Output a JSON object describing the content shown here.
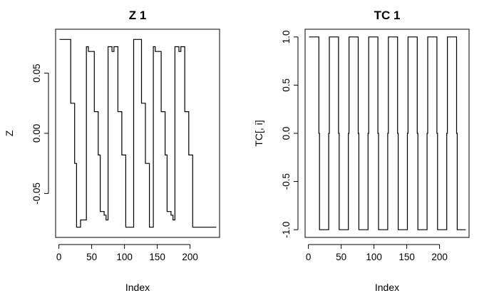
{
  "chart_data": [
    {
      "type": "line",
      "title": "Z 1",
      "xlabel": "Index",
      "ylabel": "Z",
      "xlim": [
        -5,
        245
      ],
      "ylim": [
        -0.0865,
        0.0865
      ],
      "x_ticks": [
        {
          "value": 0,
          "label": "0"
        },
        {
          "value": 50,
          "label": "50"
        },
        {
          "value": 100,
          "label": "100"
        },
        {
          "value": 150,
          "label": "150"
        },
        {
          "value": 200,
          "label": "200"
        }
      ],
      "y_ticks": [
        {
          "value": -0.05,
          "label": "-0.05"
        },
        {
          "value": 0,
          "label": "0.00"
        },
        {
          "value": 0.05,
          "label": "0.05"
        }
      ],
      "grid": false,
      "line_style": "step",
      "series": [
        {
          "x": [
            1,
            15,
            18,
            21,
            24,
            27,
            30,
            33,
            36,
            39,
            42,
            45,
            48,
            51,
            54,
            57,
            60,
            63,
            66,
            69,
            72,
            75,
            78,
            81,
            84,
            87,
            90,
            93,
            96,
            99,
            102,
            105,
            108,
            111,
            114,
            117,
            120,
            123,
            126,
            129,
            132,
            135,
            138,
            141,
            144,
            147,
            150,
            153,
            156,
            159,
            162,
            165,
            168,
            171,
            174,
            177,
            180,
            183,
            186,
            189,
            192,
            195,
            198,
            201,
            204,
            207,
            210,
            213,
            216,
            219,
            222,
            225,
            228,
            240
          ],
          "y": [
            0.078,
            0.078,
            0.025,
            0.025,
            -0.025,
            -0.078,
            -0.078,
            -0.072,
            -0.072,
            -0.072,
            0.072,
            0.068,
            0.068,
            0.068,
            0.018,
            0.018,
            -0.018,
            -0.065,
            -0.065,
            -0.068,
            -0.072,
            0.072,
            0.072,
            0.068,
            0.072,
            0.072,
            0.018,
            0.018,
            -0.018,
            -0.018,
            -0.078,
            -0.078,
            -0.078,
            -0.078,
            0.078,
            0.078,
            0.078,
            0.078,
            0.025,
            0.025,
            -0.025,
            -0.025,
            -0.078,
            -0.078,
            0.072,
            0.068,
            0.068,
            0.068,
            0.018,
            0.018,
            -0.018,
            -0.065,
            -0.065,
            -0.068,
            -0.072,
            0.072,
            0.072,
            0.068,
            0.072,
            0.072,
            0.018,
            0.018,
            -0.018,
            -0.018,
            -0.078,
            -0.078,
            -0.078,
            -0.078,
            -0.078,
            -0.078,
            -0.078,
            -0.078,
            -0.078,
            -0.078
          ]
        }
      ]
    },
    {
      "type": "line",
      "title": "TC 1",
      "xlabel": "Index",
      "ylabel": "TC[, i]",
      "xlim": [
        -5,
        245
      ],
      "ylim": [
        -1.08,
        1.08
      ],
      "x_ticks": [
        {
          "value": 0,
          "label": "0"
        },
        {
          "value": 50,
          "label": "50"
        },
        {
          "value": 100,
          "label": "100"
        },
        {
          "value": 150,
          "label": "150"
        },
        {
          "value": 200,
          "label": "200"
        }
      ],
      "y_ticks": [
        {
          "value": -1,
          "label": "-1.0"
        },
        {
          "value": -0.5,
          "label": "-0.5"
        },
        {
          "value": 0,
          "label": "0.0"
        },
        {
          "value": 0.5,
          "label": "0.5"
        },
        {
          "value": 1,
          "label": "1.0"
        }
      ],
      "grid": false,
      "line_style": "step",
      "series": [
        {
          "x": [
            1,
            15,
            16,
            17,
            30,
            31,
            32,
            45,
            46,
            47,
            60,
            61,
            62,
            75,
            76,
            77,
            90,
            91,
            92,
            105,
            106,
            107,
            120,
            121,
            122,
            135,
            136,
            137,
            150,
            151,
            152,
            165,
            166,
            167,
            180,
            181,
            182,
            195,
            196,
            197,
            210,
            211,
            212,
            225,
            226,
            227,
            240
          ],
          "y": [
            1,
            1,
            0,
            -1,
            -1,
            0,
            1,
            1,
            0,
            -1,
            -1,
            0,
            1,
            1,
            0,
            -1,
            -1,
            0,
            1,
            1,
            0,
            -1,
            -1,
            0,
            1,
            1,
            0,
            -1,
            -1,
            0,
            1,
            1,
            0,
            -1,
            -1,
            0,
            1,
            1,
            0,
            -1,
            -1,
            0,
            1,
            1,
            0,
            -1,
            -1
          ]
        }
      ]
    }
  ]
}
